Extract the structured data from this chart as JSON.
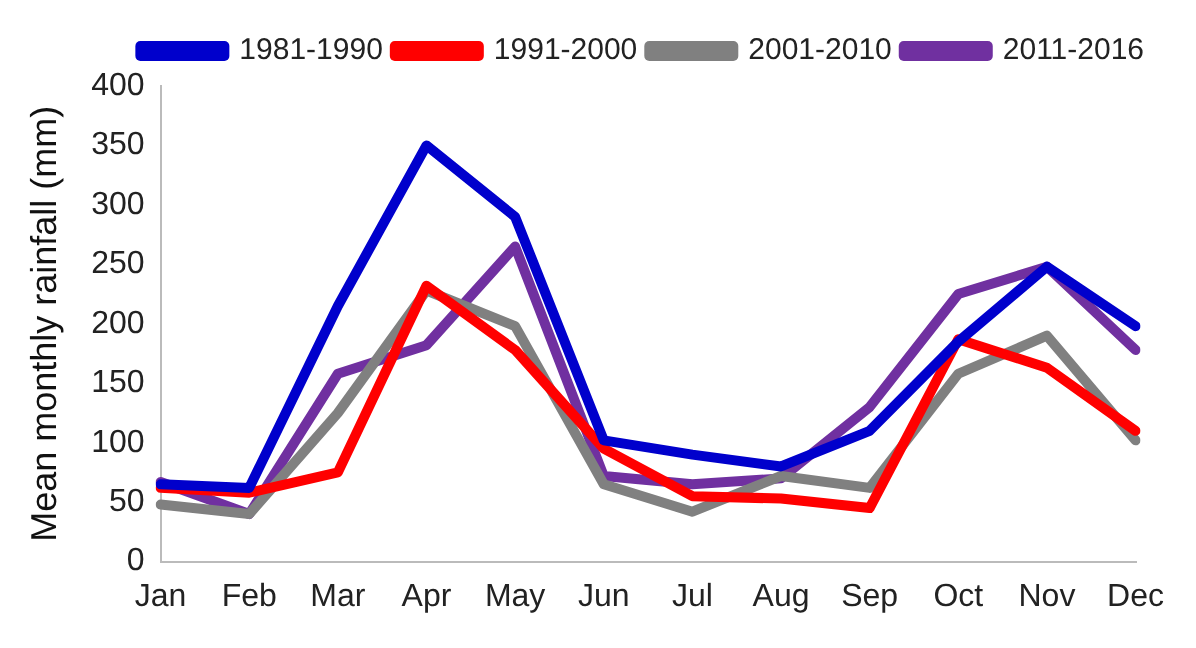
{
  "chart_data": {
    "type": "line",
    "ylabel": "Mean monthly rainfall (mm)",
    "categories": [
      "Jan",
      "Feb",
      "Mar",
      "Apr",
      "May",
      "Jun",
      "Jul",
      "Aug",
      "Sep",
      "Oct",
      "Nov",
      "Dec"
    ],
    "series": [
      {
        "name": "1981-1990",
        "color": "#0000cc",
        "values": [
          65,
          62,
          215,
          350,
          290,
          102,
          90,
          80,
          110,
          185,
          248,
          198
        ]
      },
      {
        "name": "1991-2000",
        "color": "#ff0000",
        "values": [
          62,
          58,
          75,
          232,
          178,
          95,
          55,
          53,
          45,
          187,
          163,
          110
        ]
      },
      {
        "name": "2001-2010",
        "color": "#808080",
        "values": [
          48,
          40,
          125,
          228,
          198,
          65,
          42,
          72,
          62,
          158,
          190,
          102
        ]
      },
      {
        "name": "2011-2016",
        "color": "#7030a0",
        "values": [
          67,
          40,
          158,
          182,
          265,
          72,
          65,
          70,
          130,
          225,
          248,
          178
        ]
      }
    ],
    "ylim": [
      0,
      400
    ],
    "yticks": [
      0,
      50,
      100,
      150,
      200,
      250,
      300,
      350,
      400
    ],
    "grid": false,
    "legend": "top right",
    "marker": "none",
    "line_style": "solid"
  }
}
